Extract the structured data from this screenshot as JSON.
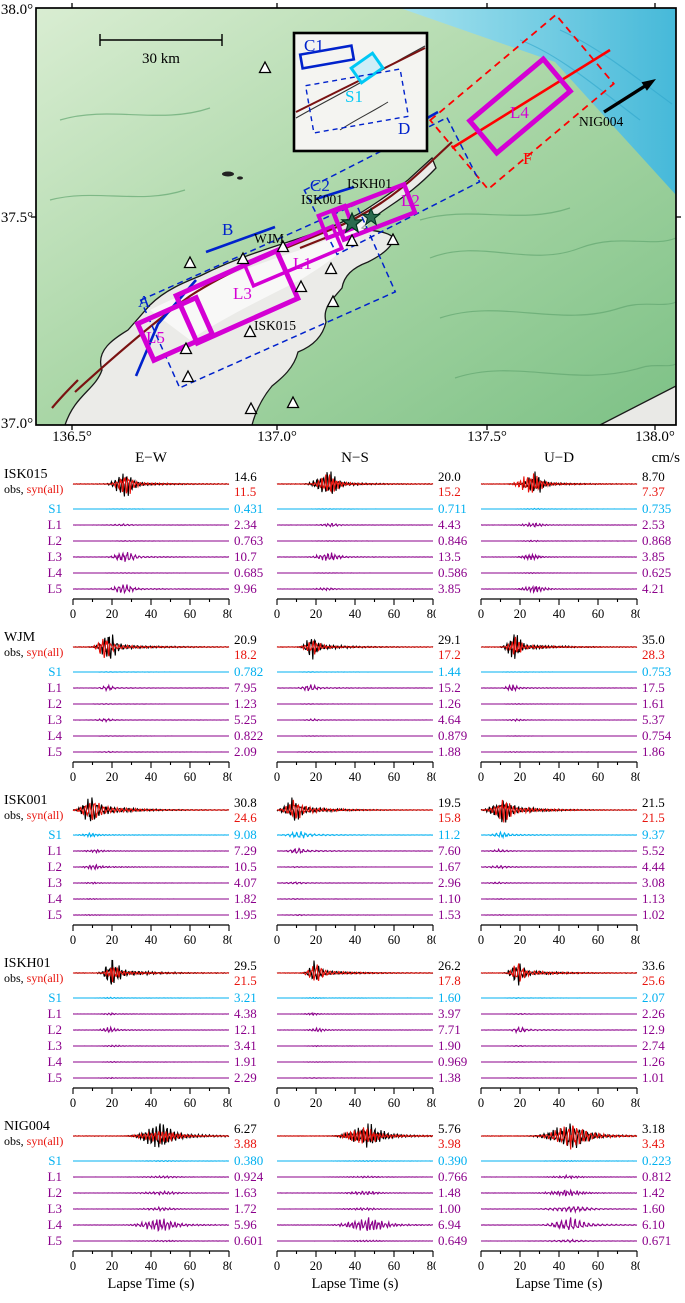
{
  "colors": {
    "syn": "#e8130c",
    "s1": "#00b0f0",
    "patch_trace": "#8b008b",
    "map_magenta": "#d400d4",
    "map_blue": "#0022cc",
    "map_cyan": "#00c8f5",
    "map_red": "#ff0000",
    "fault_dark_red": "#7a1212",
    "star_green": "#2a6b4e"
  },
  "map": {
    "y_ticks": [
      "38.0°",
      "37.5°",
      "37.0°"
    ],
    "x_ticks": [
      "136.5°",
      "137.0°",
      "137.5°",
      "138.0°"
    ],
    "scale_label": "30 km",
    "labels": {
      "A": "A",
      "B": "B",
      "C1": "C1",
      "C2": "C2",
      "D": "D",
      "S1": "S1",
      "F": "F",
      "L1": "L1",
      "L2": "L2",
      "L3": "L3",
      "L4": "L4",
      "L5": "L5",
      "WJM": "WJM",
      "ISK001": "ISK001",
      "ISKH01": "ISKH01",
      "ISK015": "ISK015",
      "NIG004": "NIG004"
    }
  },
  "waveforms": {
    "col_headers": [
      "E−W",
      "N−S",
      "U−D"
    ],
    "unit_header": "cm/s",
    "obs_label": "obs,",
    "syn_label": "syn(all)",
    "row_labels": [
      "S1",
      "L1",
      "L2",
      "L3",
      "L4",
      "L5"
    ],
    "x_ticks": [
      "0",
      "20",
      "40",
      "60",
      "80"
    ],
    "xlabel": "Lapse Time (s)",
    "stations": [
      {
        "name": "ISK015",
        "components": [
          {
            "obs": "14.6",
            "syn": "11.5",
            "rows": [
              "0.431",
              "2.34",
              "0.763",
              "10.7",
              "0.685",
              "9.96"
            ]
          },
          {
            "obs": "20.0",
            "syn": "15.2",
            "rows": [
              "0.711",
              "4.43",
              "0.846",
              "13.5",
              "0.586",
              "3.85"
            ]
          },
          {
            "obs": "8.70",
            "syn": "7.37",
            "rows": [
              "0.735",
              "2.53",
              "0.868",
              "3.85",
              "0.625",
              "4.21"
            ]
          }
        ]
      },
      {
        "name": "WJM",
        "components": [
          {
            "obs": "20.9",
            "syn": "18.2",
            "rows": [
              "0.782",
              "7.95",
              "1.23",
              "5.25",
              "0.822",
              "2.09"
            ]
          },
          {
            "obs": "29.1",
            "syn": "17.2",
            "rows": [
              "1.44",
              "15.2",
              "1.26",
              "4.64",
              "0.879",
              "1.88"
            ]
          },
          {
            "obs": "35.0",
            "syn": "28.3",
            "rows": [
              "0.753",
              "17.5",
              "1.61",
              "5.37",
              "0.754",
              "1.86"
            ]
          }
        ]
      },
      {
        "name": "ISK001",
        "components": [
          {
            "obs": "30.8",
            "syn": "24.6",
            "rows": [
              "9.08",
              "7.29",
              "10.5",
              "4.07",
              "1.82",
              "1.95"
            ]
          },
          {
            "obs": "19.5",
            "syn": "15.8",
            "rows": [
              "11.2",
              "7.60",
              "1.67",
              "2.96",
              "1.10",
              "1.53"
            ]
          },
          {
            "obs": "21.5",
            "syn": "21.5",
            "rows": [
              "9.37",
              "5.52",
              "4.44",
              "3.08",
              "1.13",
              "1.02"
            ]
          }
        ]
      },
      {
        "name": "ISKH01",
        "components": [
          {
            "obs": "29.5",
            "syn": "21.5",
            "rows": [
              "3.21",
              "4.38",
              "12.1",
              "3.41",
              "1.91",
              "2.29"
            ]
          },
          {
            "obs": "26.2",
            "syn": "17.8",
            "rows": [
              "1.60",
              "3.97",
              "7.71",
              "1.90",
              "0.969",
              "1.38"
            ]
          },
          {
            "obs": "33.6",
            "syn": "25.6",
            "rows": [
              "2.07",
              "2.26",
              "12.9",
              "2.74",
              "1.26",
              "1.01"
            ]
          }
        ]
      },
      {
        "name": "NIG004",
        "components": [
          {
            "obs": "6.27",
            "syn": "3.88",
            "rows": [
              "0.380",
              "0.924",
              "1.63",
              "1.72",
              "5.96",
              "0.601"
            ]
          },
          {
            "obs": "5.76",
            "syn": "3.98",
            "rows": [
              "0.390",
              "0.766",
              "1.48",
              "1.00",
              "6.94",
              "0.649"
            ]
          },
          {
            "obs": "3.18",
            "syn": "3.43",
            "rows": [
              "0.223",
              "0.812",
              "1.42",
              "1.60",
              "6.10",
              "0.671"
            ]
          }
        ]
      }
    ]
  }
}
